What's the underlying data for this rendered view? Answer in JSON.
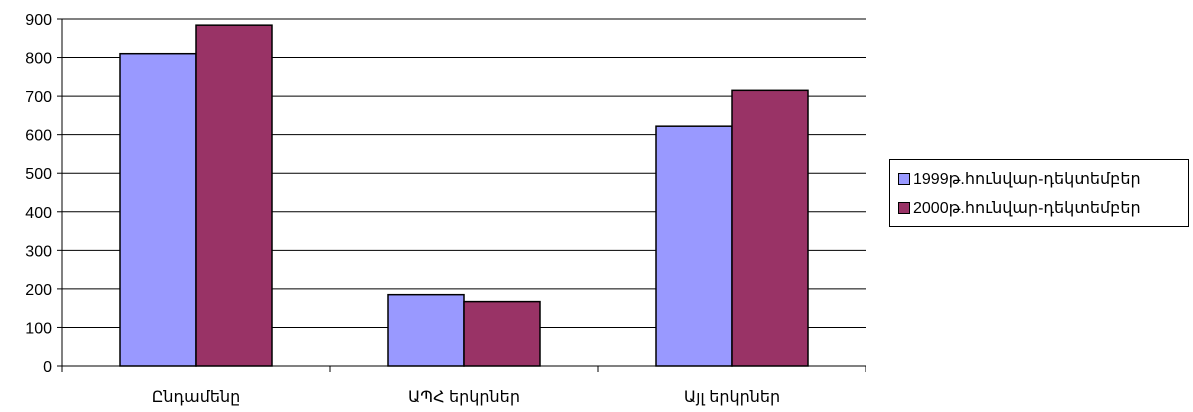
{
  "chart_data": {
    "type": "bar",
    "categories": [
      "Ընդամենը",
      "ԱՊՀ երկրներ",
      "Այլ երկրներ"
    ],
    "series": [
      {
        "name": "1999թ.հունվար-դեկտեմբեր",
        "values": [
          810,
          185,
          622
        ],
        "color": "#9999ff"
      },
      {
        "name": "2000թ.հունվար-դեկտեմբեր",
        "values": [
          884,
          167,
          715
        ],
        "color": "#993366"
      }
    ],
    "ylim": [
      0,
      900
    ],
    "yticks": [
      0,
      100,
      200,
      300,
      400,
      500,
      600,
      700,
      800,
      900
    ],
    "grid": true,
    "legend_position": "right",
    "title": "",
    "xlabel": "",
    "ylabel": ""
  }
}
